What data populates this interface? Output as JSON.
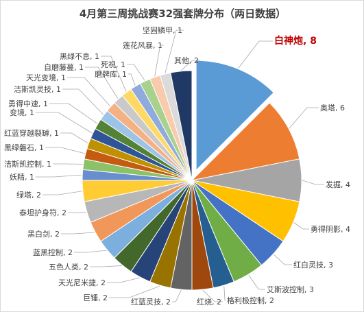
{
  "chart_data": {
    "type": "pie",
    "title": "4月第三周挑战赛32强套牌分布（两日数据）",
    "labels_shown": "name, value",
    "exploded": [
      "白神炮"
    ],
    "highlight_label": "白神炮",
    "highlight_color": "#c00000",
    "slices": [
      {
        "name": "白神炮",
        "value": 8,
        "color": "#5b9bd5"
      },
      {
        "name": "奥塔",
        "value": 6,
        "color": "#ed7d31"
      },
      {
        "name": "发掘",
        "value": 4,
        "color": "#a5a5a5"
      },
      {
        "name": "勇得阴影",
        "value": 4,
        "color": "#ffc000"
      },
      {
        "name": "红白灵技",
        "value": 3,
        "color": "#4472c4"
      },
      {
        "name": "艾斯波控制",
        "value": 3,
        "color": "#70ad47"
      },
      {
        "name": "格利极控制",
        "value": 2,
        "color": "#255e91"
      },
      {
        "name": "红烧",
        "value": 2,
        "color": "#9e480e"
      },
      {
        "name": "红蓝灵技",
        "value": 2,
        "color": "#636363"
      },
      {
        "name": "巨锤",
        "value": 2,
        "color": "#997300"
      },
      {
        "name": "天光尼米捷",
        "value": 2,
        "color": "#264478"
      },
      {
        "name": "五色人类",
        "value": 2,
        "color": "#43682b"
      },
      {
        "name": "蓝黑控制",
        "value": 2,
        "color": "#7cafdd"
      },
      {
        "name": "黑白剑",
        "value": 2,
        "color": "#f1975a"
      },
      {
        "name": "泰坦护身符",
        "value": 2,
        "color": "#b7b7b7"
      },
      {
        "name": "绿塔",
        "value": 2,
        "color": "#ffcd33"
      },
      {
        "name": "妖精",
        "value": 1,
        "color": "#698ed0"
      },
      {
        "name": "洁斯凯控制",
        "value": 1,
        "color": "#8cc168"
      },
      {
        "name": "黑绿磐石",
        "value": 1,
        "color": "#c55a11"
      },
      {
        "name": "红蓝穿越裂罅",
        "value": 1,
        "color": "#bf9000"
      },
      {
        "name": "变境",
        "value": 1,
        "color": "#2f5597"
      },
      {
        "name": "勇得中速",
        "value": 1,
        "color": "#548235"
      },
      {
        "name": "洁斯凯灵技",
        "value": 1,
        "color": "#9dc3e6"
      },
      {
        "name": "天光变境",
        "value": 1,
        "color": "#f4b183"
      },
      {
        "name": "自磨藤蔓",
        "value": 1,
        "color": "#c9c9c9"
      },
      {
        "name": "黑绿不息",
        "value": 1,
        "color": "#ffd966"
      },
      {
        "name": "磨牌库",
        "value": 1,
        "color": "#8faadc"
      },
      {
        "name": "死祝",
        "value": 1,
        "color": "#a9d18e"
      },
      {
        "name": "莲花风暴",
        "value": 1,
        "color": "#f8cbad"
      },
      {
        "name": "坚固鳞甲",
        "value": 1,
        "color": "#dbdbdb"
      },
      {
        "name": "其他",
        "value": 2,
        "color": "#203864"
      }
    ]
  }
}
